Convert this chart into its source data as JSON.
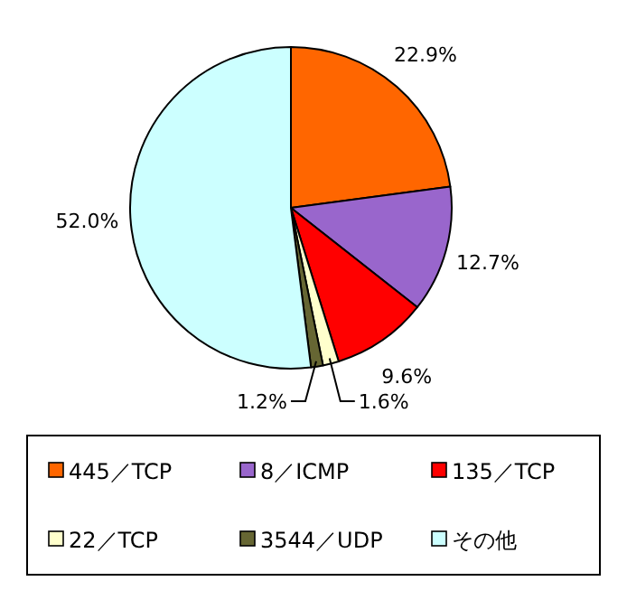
{
  "chart_data": {
    "type": "pie",
    "categories": [
      "445／TCP",
      "8／ICMP",
      "135／TCP",
      "22／TCP",
      "3544／UDP",
      "その他"
    ],
    "values": [
      22.9,
      12.7,
      9.6,
      1.6,
      1.2,
      52.0
    ],
    "colors": [
      "#ff6600",
      "#9966cc",
      "#ff0000",
      "#ffffcc",
      "#666633",
      "#ccffff"
    ],
    "value_labels": [
      "22.9%",
      "12.7%",
      "9.6%",
      "1.6%",
      "1.2%",
      "52.0%"
    ],
    "legend": "bottom"
  }
}
